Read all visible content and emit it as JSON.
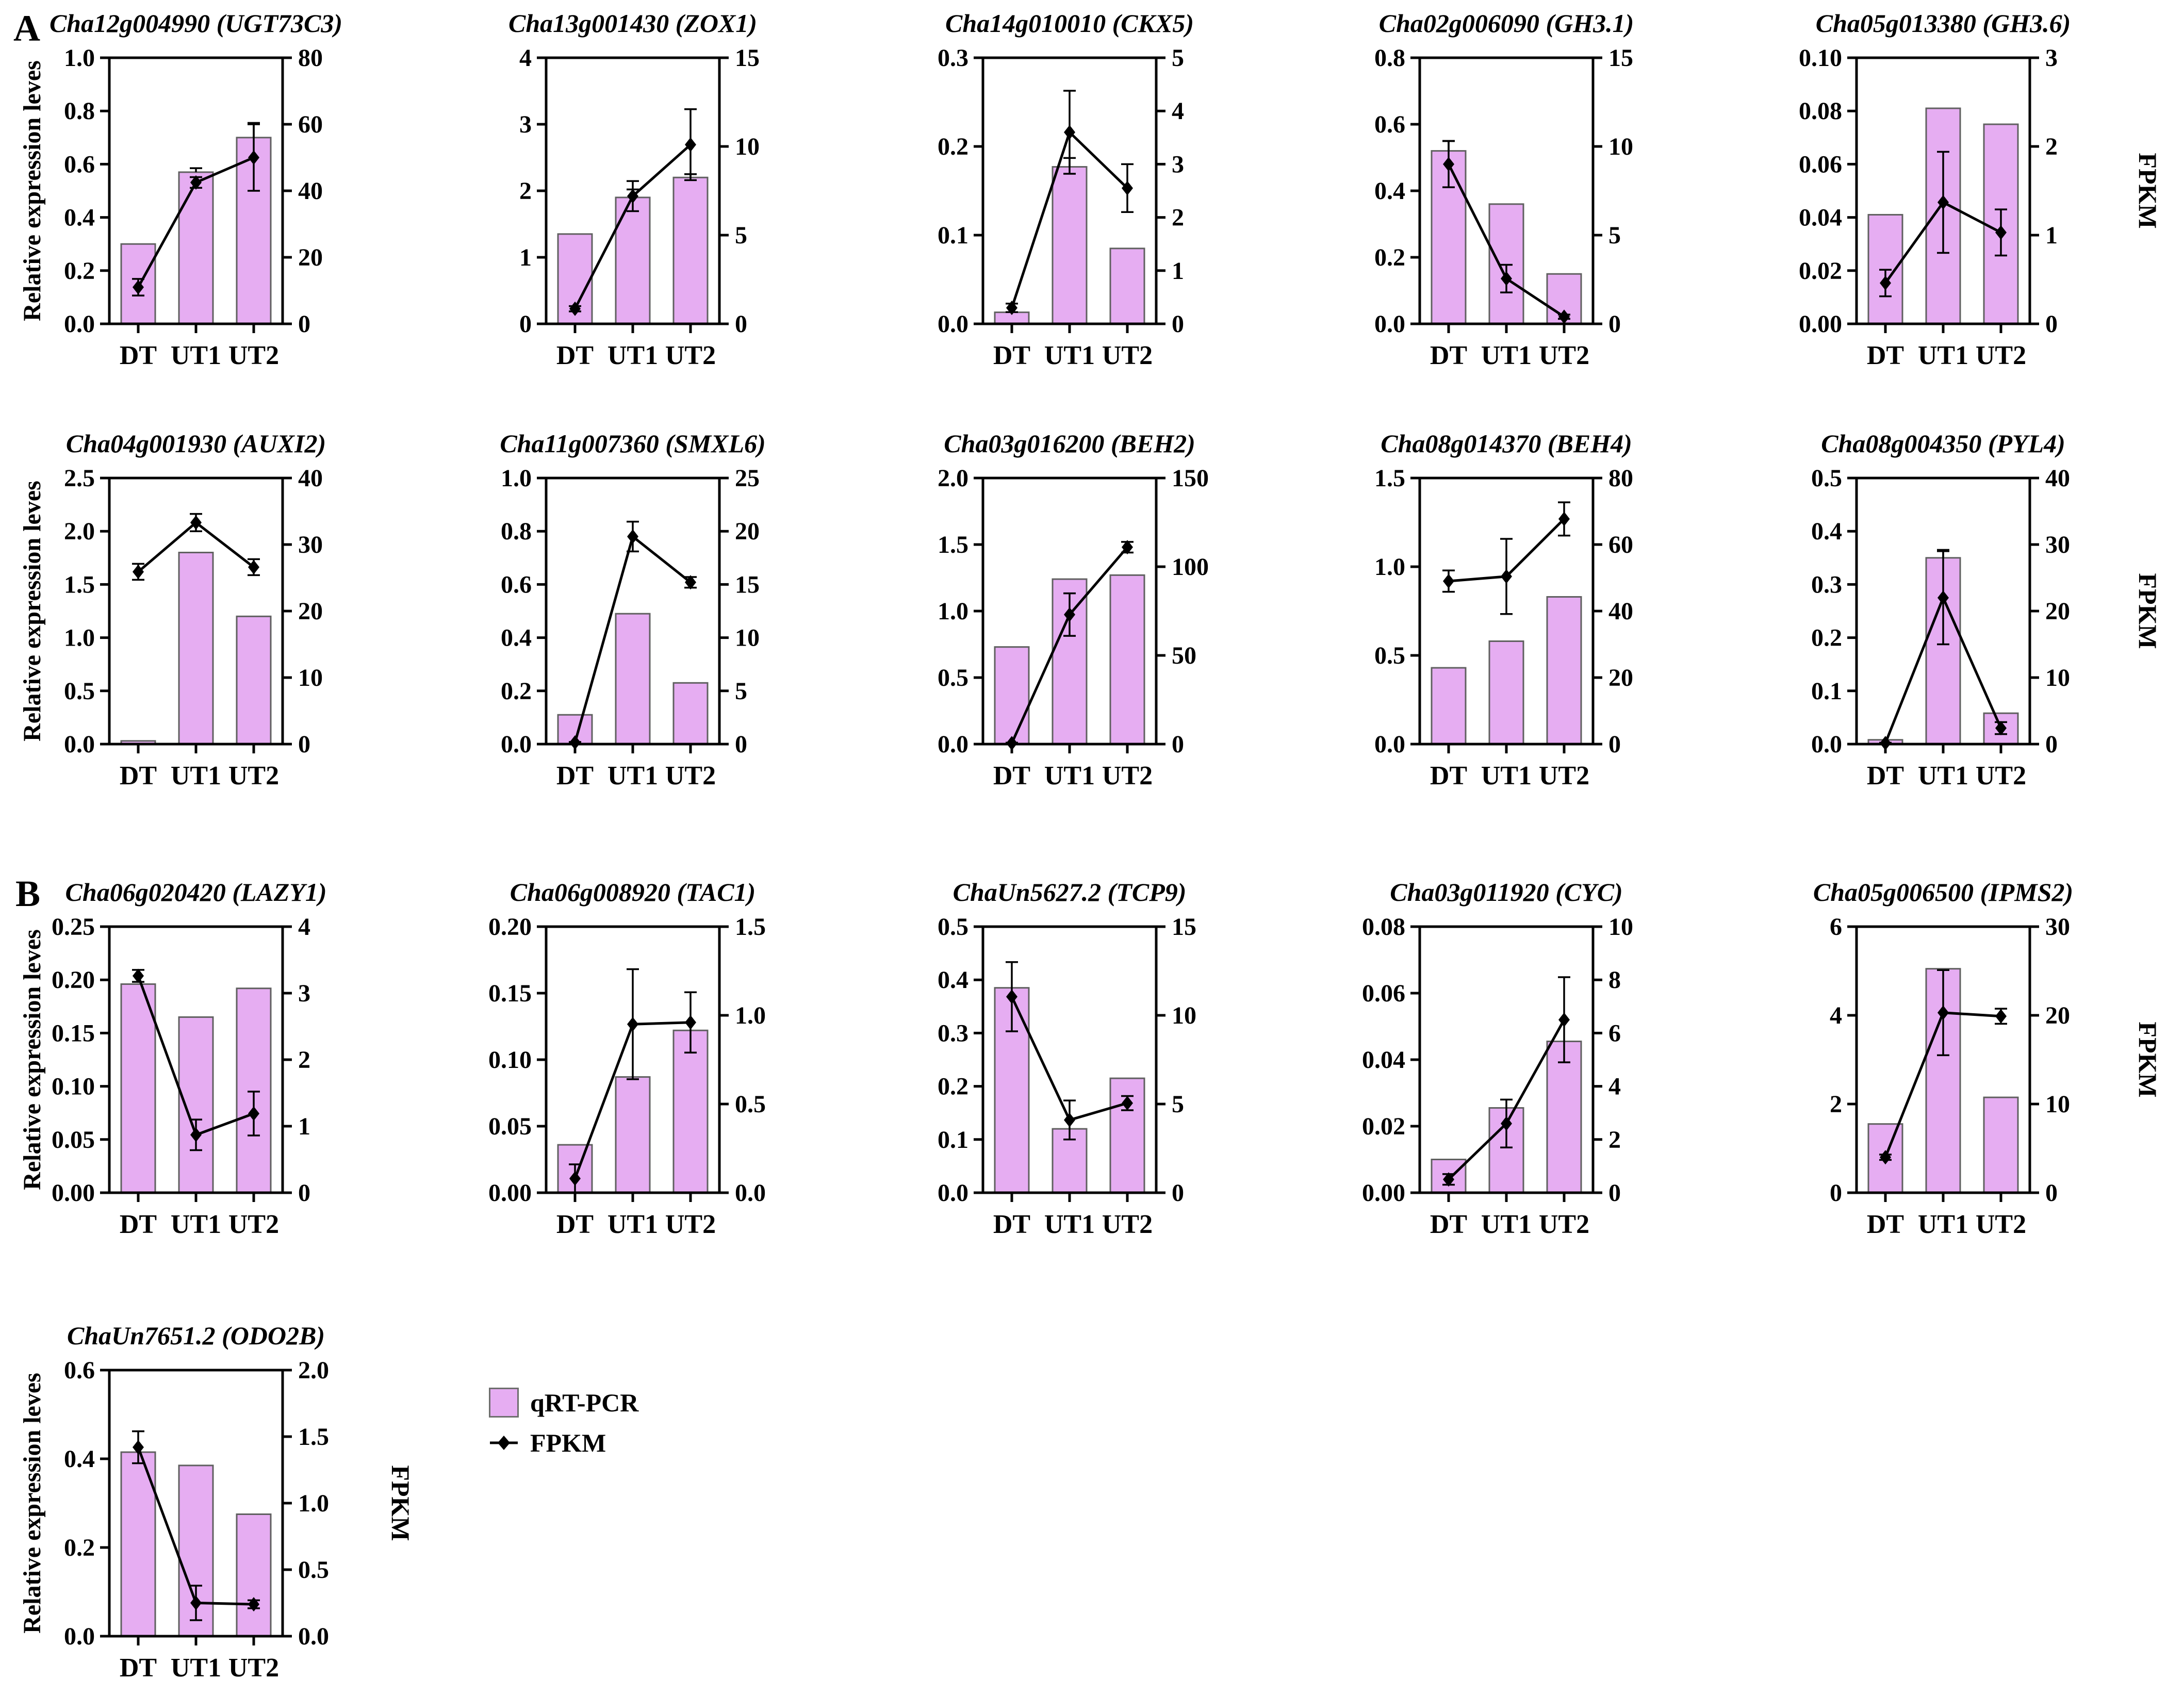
{
  "page": {
    "panel_a_label": "A",
    "panel_b_label": "B",
    "ylabel": "Relative expression leves",
    "right_axis_label": "FPKM",
    "categories": [
      "DT",
      "UT1",
      "UT2"
    ]
  },
  "legend": {
    "bar_label": "qRT-PCR",
    "line_label": "FPKM"
  },
  "colors": {
    "bar_fill": "#E6ADF2",
    "bar_edge": "#606060",
    "line_color": "#000000",
    "axis_color": "#000000"
  },
  "chart_data": [
    {
      "type": "bar+line",
      "title": "Cha12g004990 (UGT73C3)",
      "panel": "A",
      "show_ylabel": true,
      "show_fpkm": false,
      "categories": [
        "DT",
        "UT1",
        "UT2"
      ],
      "left_axis": {
        "min": 0,
        "max": 1.0,
        "ticks": [
          "0.0",
          "0.2",
          "0.4",
          "0.6",
          "0.8",
          "1.0"
        ]
      },
      "right_axis": {
        "min": 0,
        "max": 80,
        "ticks": [
          "0",
          "20",
          "40",
          "60",
          "80"
        ]
      },
      "bars": [
        0.3,
        0.57,
        0.7
      ],
      "bar_err": [
        0,
        0.015,
        0.055
      ],
      "line": [
        11,
        42.5,
        50
      ],
      "line_err": [
        2.5,
        1.6,
        10
      ]
    },
    {
      "type": "bar+line",
      "title": "Cha13g001430 (ZOX1)",
      "panel": "",
      "show_ylabel": false,
      "show_fpkm": false,
      "categories": [
        "DT",
        "UT1",
        "UT2"
      ],
      "left_axis": {
        "min": 0,
        "max": 4,
        "ticks": [
          "0",
          "1",
          "2",
          "3",
          "4"
        ]
      },
      "right_axis": {
        "min": 0,
        "max": 15,
        "ticks": [
          "0",
          "5",
          "10",
          "15"
        ]
      },
      "bars": [
        1.35,
        1.9,
        2.2
      ],
      "bar_err": [
        0,
        0.12,
        0.05
      ],
      "line": [
        0.85,
        7.2,
        10.1
      ],
      "line_err": [
        0.15,
        0.85,
        2.0
      ]
    },
    {
      "type": "bar+line",
      "title": "Cha14g010010 (CKX5)",
      "panel": "",
      "show_ylabel": false,
      "show_fpkm": false,
      "categories": [
        "DT",
        "UT1",
        "UT2"
      ],
      "left_axis": {
        "min": 0,
        "max": 0.3,
        "ticks": [
          "0.0",
          "0.1",
          "0.2",
          "0.3"
        ]
      },
      "right_axis": {
        "min": 0,
        "max": 5,
        "ticks": [
          "0",
          "1",
          "2",
          "3",
          "4",
          "5"
        ]
      },
      "bars": [
        0.013,
        0.177,
        0.085
      ],
      "bar_err": [
        0,
        0.01,
        0
      ],
      "line": [
        0.3,
        3.6,
        2.55
      ],
      "line_err": [
        0.08,
        0.78,
        0.45
      ]
    },
    {
      "type": "bar+line",
      "title": "Cha02g006090 (GH3.1)",
      "panel": "",
      "show_ylabel": false,
      "show_fpkm": false,
      "categories": [
        "DT",
        "UT1",
        "UT2"
      ],
      "left_axis": {
        "min": 0,
        "max": 0.8,
        "ticks": [
          "0.0",
          "0.2",
          "0.4",
          "0.6",
          "0.8"
        ]
      },
      "right_axis": {
        "min": 0,
        "max": 15,
        "ticks": [
          "0",
          "5",
          "10",
          "15"
        ]
      },
      "bars": [
        0.52,
        0.36,
        0.15
      ],
      "bar_err": [
        0.03,
        0,
        0
      ],
      "line": [
        9.0,
        2.55,
        0.4
      ],
      "line_err": [
        1.3,
        0.78,
        0.12
      ]
    },
    {
      "type": "bar+line",
      "title": "Cha05g013380 (GH3.6)",
      "panel": "",
      "show_ylabel": false,
      "show_fpkm": true,
      "categories": [
        "DT",
        "UT1",
        "UT2"
      ],
      "left_axis": {
        "min": 0,
        "max": 0.1,
        "ticks": [
          "0.00",
          "0.02",
          "0.04",
          "0.06",
          "0.08",
          "0.10"
        ]
      },
      "right_axis": {
        "min": 0,
        "max": 3,
        "ticks": [
          "0",
          "1",
          "2",
          "3"
        ]
      },
      "bars": [
        0.041,
        0.081,
        0.075
      ],
      "bar_err": [
        0,
        0,
        0
      ],
      "line": [
        0.46,
        1.37,
        1.03
      ],
      "line_err": [
        0.15,
        0.57,
        0.26
      ]
    },
    {
      "type": "bar+line",
      "title": "Cha04g001930 (AUXI2)",
      "panel": "",
      "show_ylabel": true,
      "show_fpkm": false,
      "categories": [
        "DT",
        "UT1",
        "UT2"
      ],
      "left_axis": {
        "min": 0,
        "max": 2.5,
        "ticks": [
          "0.0",
          "0.5",
          "1.0",
          "1.5",
          "2.0",
          "2.5"
        ]
      },
      "right_axis": {
        "min": 0,
        "max": 40,
        "ticks": [
          "0",
          "10",
          "20",
          "30",
          "40"
        ]
      },
      "bars": [
        0.03,
        1.8,
        1.2
      ],
      "bar_err": [
        0,
        0,
        0
      ],
      "line": [
        25.9,
        33.3,
        26.6
      ],
      "line_err": [
        1.2,
        1.3,
        1.2
      ]
    },
    {
      "type": "bar+line",
      "title": "Cha11g007360 (SMXL6)",
      "panel": "",
      "show_ylabel": false,
      "show_fpkm": false,
      "categories": [
        "DT",
        "UT1",
        "UT2"
      ],
      "left_axis": {
        "min": 0,
        "max": 1.0,
        "ticks": [
          "0.0",
          "0.2",
          "0.4",
          "0.6",
          "0.8",
          "1.0"
        ]
      },
      "right_axis": {
        "min": 0,
        "max": 25,
        "ticks": [
          "0",
          "5",
          "10",
          "15",
          "20",
          "25"
        ]
      },
      "bars": [
        0.11,
        0.49,
        0.23
      ],
      "bar_err": [
        0,
        0,
        0
      ],
      "line": [
        0.15,
        19.5,
        15.2
      ],
      "line_err": [
        0.05,
        1.4,
        0.5
      ]
    },
    {
      "type": "bar+line",
      "title": "Cha03g016200 (BEH2)",
      "panel": "",
      "show_ylabel": false,
      "show_fpkm": false,
      "categories": [
        "DT",
        "UT1",
        "UT2"
      ],
      "left_axis": {
        "min": 0,
        "max": 2.0,
        "ticks": [
          "0.0",
          "0.5",
          "1.0",
          "1.5",
          "2.0"
        ]
      },
      "right_axis": {
        "min": 0,
        "max": 150,
        "ticks": [
          "0",
          "50",
          "100",
          "150"
        ]
      },
      "bars": [
        0.73,
        1.24,
        1.27
      ],
      "bar_err": [
        0,
        0,
        0
      ],
      "line": [
        0.5,
        73,
        111
      ],
      "line_err": [
        0.3,
        12,
        3
      ]
    },
    {
      "type": "bar+line",
      "title": "Cha08g014370 (BEH4)",
      "panel": "",
      "show_ylabel": false,
      "show_fpkm": false,
      "categories": [
        "DT",
        "UT1",
        "UT2"
      ],
      "left_axis": {
        "min": 0,
        "max": 1.5,
        "ticks": [
          "0.0",
          "0.5",
          "1.0",
          "1.5"
        ]
      },
      "right_axis": {
        "min": 0,
        "max": 80,
        "ticks": [
          "0",
          "20",
          "40",
          "60",
          "80"
        ]
      },
      "bars": [
        0.43,
        0.58,
        0.83
      ],
      "bar_err": [
        0,
        0,
        0
      ],
      "line": [
        49,
        50.4,
        67.7
      ],
      "line_err": [
        3.2,
        11.3,
        5.0
      ]
    },
    {
      "type": "bar+line",
      "title": "Cha08g004350 (PYL4)",
      "panel": "",
      "show_ylabel": false,
      "show_fpkm": true,
      "categories": [
        "DT",
        "UT1",
        "UT2"
      ],
      "left_axis": {
        "min": 0,
        "max": 0.5,
        "ticks": [
          "0.0",
          "0.1",
          "0.2",
          "0.3",
          "0.4",
          "0.5"
        ]
      },
      "right_axis": {
        "min": 0,
        "max": 40,
        "ticks": [
          "0",
          "10",
          "20",
          "30",
          "40"
        ]
      },
      "bars": [
        0.008,
        0.35,
        0.058
      ],
      "bar_err": [
        0,
        0.015,
        0
      ],
      "line": [
        0.15,
        22,
        2.4
      ],
      "line_err": [
        0.05,
        7,
        0.9
      ]
    },
    {
      "type": "bar+line",
      "title": "Cha06g020420 (LAZY1)",
      "panel": "B",
      "show_ylabel": true,
      "show_fpkm": false,
      "categories": [
        "DT",
        "UT1",
        "UT2"
      ],
      "left_axis": {
        "min": 0,
        "max": 0.25,
        "ticks": [
          "0.00",
          "0.05",
          "0.10",
          "0.15",
          "0.20",
          "0.25"
        ]
      },
      "right_axis": {
        "min": 0,
        "max": 4,
        "ticks": [
          "0",
          "1",
          "2",
          "3",
          "4"
        ]
      },
      "bars": [
        0.196,
        0.165,
        0.192
      ],
      "bar_err": [
        0,
        0,
        0
      ],
      "line": [
        3.26,
        0.87,
        1.19
      ],
      "line_err": [
        0.09,
        0.23,
        0.33
      ]
    },
    {
      "type": "bar+line",
      "title": "Cha06g008920 (TAC1)",
      "panel": "",
      "show_ylabel": false,
      "show_fpkm": false,
      "categories": [
        "DT",
        "UT1",
        "UT2"
      ],
      "left_axis": {
        "min": 0,
        "max": 0.2,
        "ticks": [
          "0.00",
          "0.05",
          "0.10",
          "0.15",
          "0.20"
        ]
      },
      "right_axis": {
        "min": 0,
        "max": 1.5,
        "ticks": [
          "0.0",
          "0.5",
          "1.0",
          "1.5"
        ]
      },
      "bars": [
        0.036,
        0.087,
        0.122
      ],
      "bar_err": [
        0,
        0,
        0
      ],
      "line": [
        0.08,
        0.95,
        0.96
      ],
      "line_err": [
        0.08,
        0.31,
        0.17
      ]
    },
    {
      "type": "bar+line",
      "title": "ChaUn5627.2 (TCP9)",
      "panel": "",
      "show_ylabel": false,
      "show_fpkm": false,
      "categories": [
        "DT",
        "UT1",
        "UT2"
      ],
      "left_axis": {
        "min": 0,
        "max": 0.5,
        "ticks": [
          "0.0",
          "0.1",
          "0.2",
          "0.3",
          "0.4",
          "0.5"
        ]
      },
      "right_axis": {
        "min": 0,
        "max": 15,
        "ticks": [
          "0",
          "5",
          "10",
          "15"
        ]
      },
      "bars": [
        0.385,
        0.12,
        0.215
      ],
      "bar_err": [
        0,
        0,
        0
      ],
      "line": [
        11.05,
        4.1,
        5.05
      ],
      "line_err": [
        1.95,
        1.1,
        0.4
      ]
    },
    {
      "type": "bar+line",
      "title": "Cha03g011920 (CYC)",
      "panel": "",
      "show_ylabel": false,
      "show_fpkm": false,
      "categories": [
        "DT",
        "UT1",
        "UT2"
      ],
      "left_axis": {
        "min": 0,
        "max": 0.08,
        "ticks": [
          "0.00",
          "0.02",
          "0.04",
          "0.06",
          "0.08"
        ]
      },
      "right_axis": {
        "min": 0,
        "max": 10,
        "ticks": [
          "0",
          "2",
          "4",
          "6",
          "8",
          "10"
        ]
      },
      "bars": [
        0.01,
        0.0255,
        0.0455
      ],
      "bar_err": [
        0,
        0,
        0
      ],
      "line": [
        0.5,
        2.6,
        6.5
      ],
      "line_err": [
        0.2,
        0.9,
        1.6
      ]
    },
    {
      "type": "bar+line",
      "title": "Cha05g006500 (IPMS2)",
      "panel": "",
      "show_ylabel": false,
      "show_fpkm": true,
      "categories": [
        "DT",
        "UT1",
        "UT2"
      ],
      "left_axis": {
        "min": 0,
        "max": 6,
        "ticks": [
          "0",
          "2",
          "4",
          "6"
        ]
      },
      "right_axis": {
        "min": 0,
        "max": 30,
        "ticks": [
          "0",
          "10",
          "20",
          "30"
        ]
      },
      "bars": [
        1.55,
        5.05,
        2.15
      ],
      "bar_err": [
        0,
        0,
        0
      ],
      "line": [
        4.0,
        20.3,
        19.9
      ],
      "line_err": [
        0.3,
        4.8,
        0.85
      ]
    },
    {
      "type": "bar+line",
      "title": "ChaUn7651.2 (ODO2B)",
      "panel": "",
      "show_ylabel": true,
      "show_fpkm": true,
      "categories": [
        "DT",
        "UT1",
        "UT2"
      ],
      "left_axis": {
        "min": 0,
        "max": 0.6,
        "ticks": [
          "0.0",
          "0.2",
          "0.4",
          "0.6"
        ]
      },
      "right_axis": {
        "min": 0,
        "max": 2.0,
        "ticks": [
          "0.0",
          "0.5",
          "1.0",
          "1.5",
          "2.0"
        ]
      },
      "bars": [
        0.415,
        0.385,
        0.275
      ],
      "bar_err": [
        0,
        0,
        0
      ],
      "line": [
        1.42,
        0.25,
        0.24
      ],
      "line_err": [
        0.12,
        0.13,
        0.03
      ]
    }
  ]
}
